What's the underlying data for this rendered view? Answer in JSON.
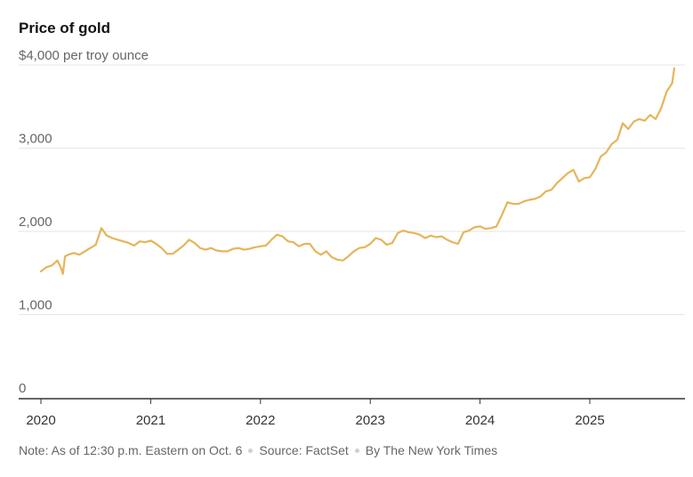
{
  "title": "Price of gold",
  "footer": {
    "note": "Note: As of 12:30 p.m. Eastern on Oct. 6",
    "source": "Source: FactSet",
    "byline": "By The New York Times"
  },
  "colors": {
    "line": "#e5b55a",
    "grid": "#e6e6e6",
    "baseline": "#333333",
    "label": "#666666"
  },
  "chart_data": {
    "type": "line",
    "title": "Price of gold",
    "ylabel": "",
    "xlabel": "",
    "ylim": [
      0,
      4000
    ],
    "xlim": [
      2019.95,
      2025.85
    ],
    "y_ticks": [
      {
        "value": 4000,
        "label": "$4,000 per troy ounce"
      },
      {
        "value": 3000,
        "label": "3,000"
      },
      {
        "value": 2000,
        "label": "2,000"
      },
      {
        "value": 1000,
        "label": "1,000"
      },
      {
        "value": 0,
        "label": "0"
      }
    ],
    "x_ticks": [
      {
        "value": 2020,
        "label": "2020"
      },
      {
        "value": 2021,
        "label": "2021"
      },
      {
        "value": 2022,
        "label": "2022"
      },
      {
        "value": 2023,
        "label": "2023"
      },
      {
        "value": 2024,
        "label": "2024"
      },
      {
        "value": 2025,
        "label": "2025"
      }
    ],
    "grid": true,
    "series": [
      {
        "x": [
          2020.0,
          2020.05,
          2020.1,
          2020.15,
          2020.18,
          2020.2,
          2020.22,
          2020.25,
          2020.3,
          2020.35,
          2020.4,
          2020.45,
          2020.5,
          2020.55,
          2020.6,
          2020.65,
          2020.7,
          2020.75,
          2020.8,
          2020.85,
          2020.9,
          2020.95,
          2021.0,
          2021.05,
          2021.1,
          2021.15,
          2021.2,
          2021.25,
          2021.3,
          2021.35,
          2021.4,
          2021.45,
          2021.5,
          2021.55,
          2021.6,
          2021.65,
          2021.7,
          2021.75,
          2021.8,
          2021.85,
          2021.9,
          2021.95,
          2022.0,
          2022.05,
          2022.1,
          2022.15,
          2022.2,
          2022.25,
          2022.3,
          2022.35,
          2022.4,
          2022.45,
          2022.5,
          2022.55,
          2022.6,
          2022.65,
          2022.7,
          2022.75,
          2022.8,
          2022.85,
          2022.9,
          2022.95,
          2023.0,
          2023.05,
          2023.1,
          2023.15,
          2023.2,
          2023.25,
          2023.3,
          2023.35,
          2023.4,
          2023.45,
          2023.5,
          2023.55,
          2023.6,
          2023.65,
          2023.7,
          2023.75,
          2023.8,
          2023.85,
          2023.9,
          2023.95,
          2024.0,
          2024.05,
          2024.1,
          2024.15,
          2024.2,
          2024.25,
          2024.3,
          2024.35,
          2024.4,
          2024.45,
          2024.5,
          2024.55,
          2024.6,
          2024.65,
          2024.7,
          2024.75,
          2024.8,
          2024.85,
          2024.9,
          2024.95,
          2025.0,
          2025.05,
          2025.1,
          2025.15,
          2025.2,
          2025.25,
          2025.3,
          2025.35,
          2025.4,
          2025.45,
          2025.5,
          2025.55,
          2025.6,
          2025.65,
          2025.7,
          2025.75,
          2025.77
        ],
        "values": [
          1520,
          1570,
          1590,
          1650,
          1570,
          1490,
          1700,
          1720,
          1740,
          1720,
          1760,
          1800,
          1840,
          2040,
          1950,
          1920,
          1900,
          1880,
          1860,
          1830,
          1880,
          1870,
          1890,
          1850,
          1800,
          1730,
          1730,
          1780,
          1830,
          1900,
          1860,
          1800,
          1780,
          1800,
          1770,
          1760,
          1760,
          1790,
          1800,
          1780,
          1790,
          1810,
          1820,
          1830,
          1900,
          1960,
          1940,
          1880,
          1870,
          1820,
          1850,
          1850,
          1760,
          1720,
          1760,
          1690,
          1660,
          1650,
          1700,
          1760,
          1800,
          1810,
          1850,
          1920,
          1900,
          1840,
          1860,
          1980,
          2010,
          1990,
          1980,
          1960,
          1920,
          1950,
          1930,
          1940,
          1900,
          1870,
          1850,
          1990,
          2010,
          2050,
          2060,
          2030,
          2040,
          2060,
          2200,
          2350,
          2330,
          2330,
          2360,
          2380,
          2390,
          2420,
          2480,
          2500,
          2580,
          2640,
          2700,
          2740,
          2600,
          2640,
          2650,
          2750,
          2900,
          2950,
          3050,
          3100,
          3300,
          3230,
          3320,
          3350,
          3330,
          3400,
          3350,
          3480,
          3680,
          3780,
          3960
        ]
      }
    ]
  }
}
